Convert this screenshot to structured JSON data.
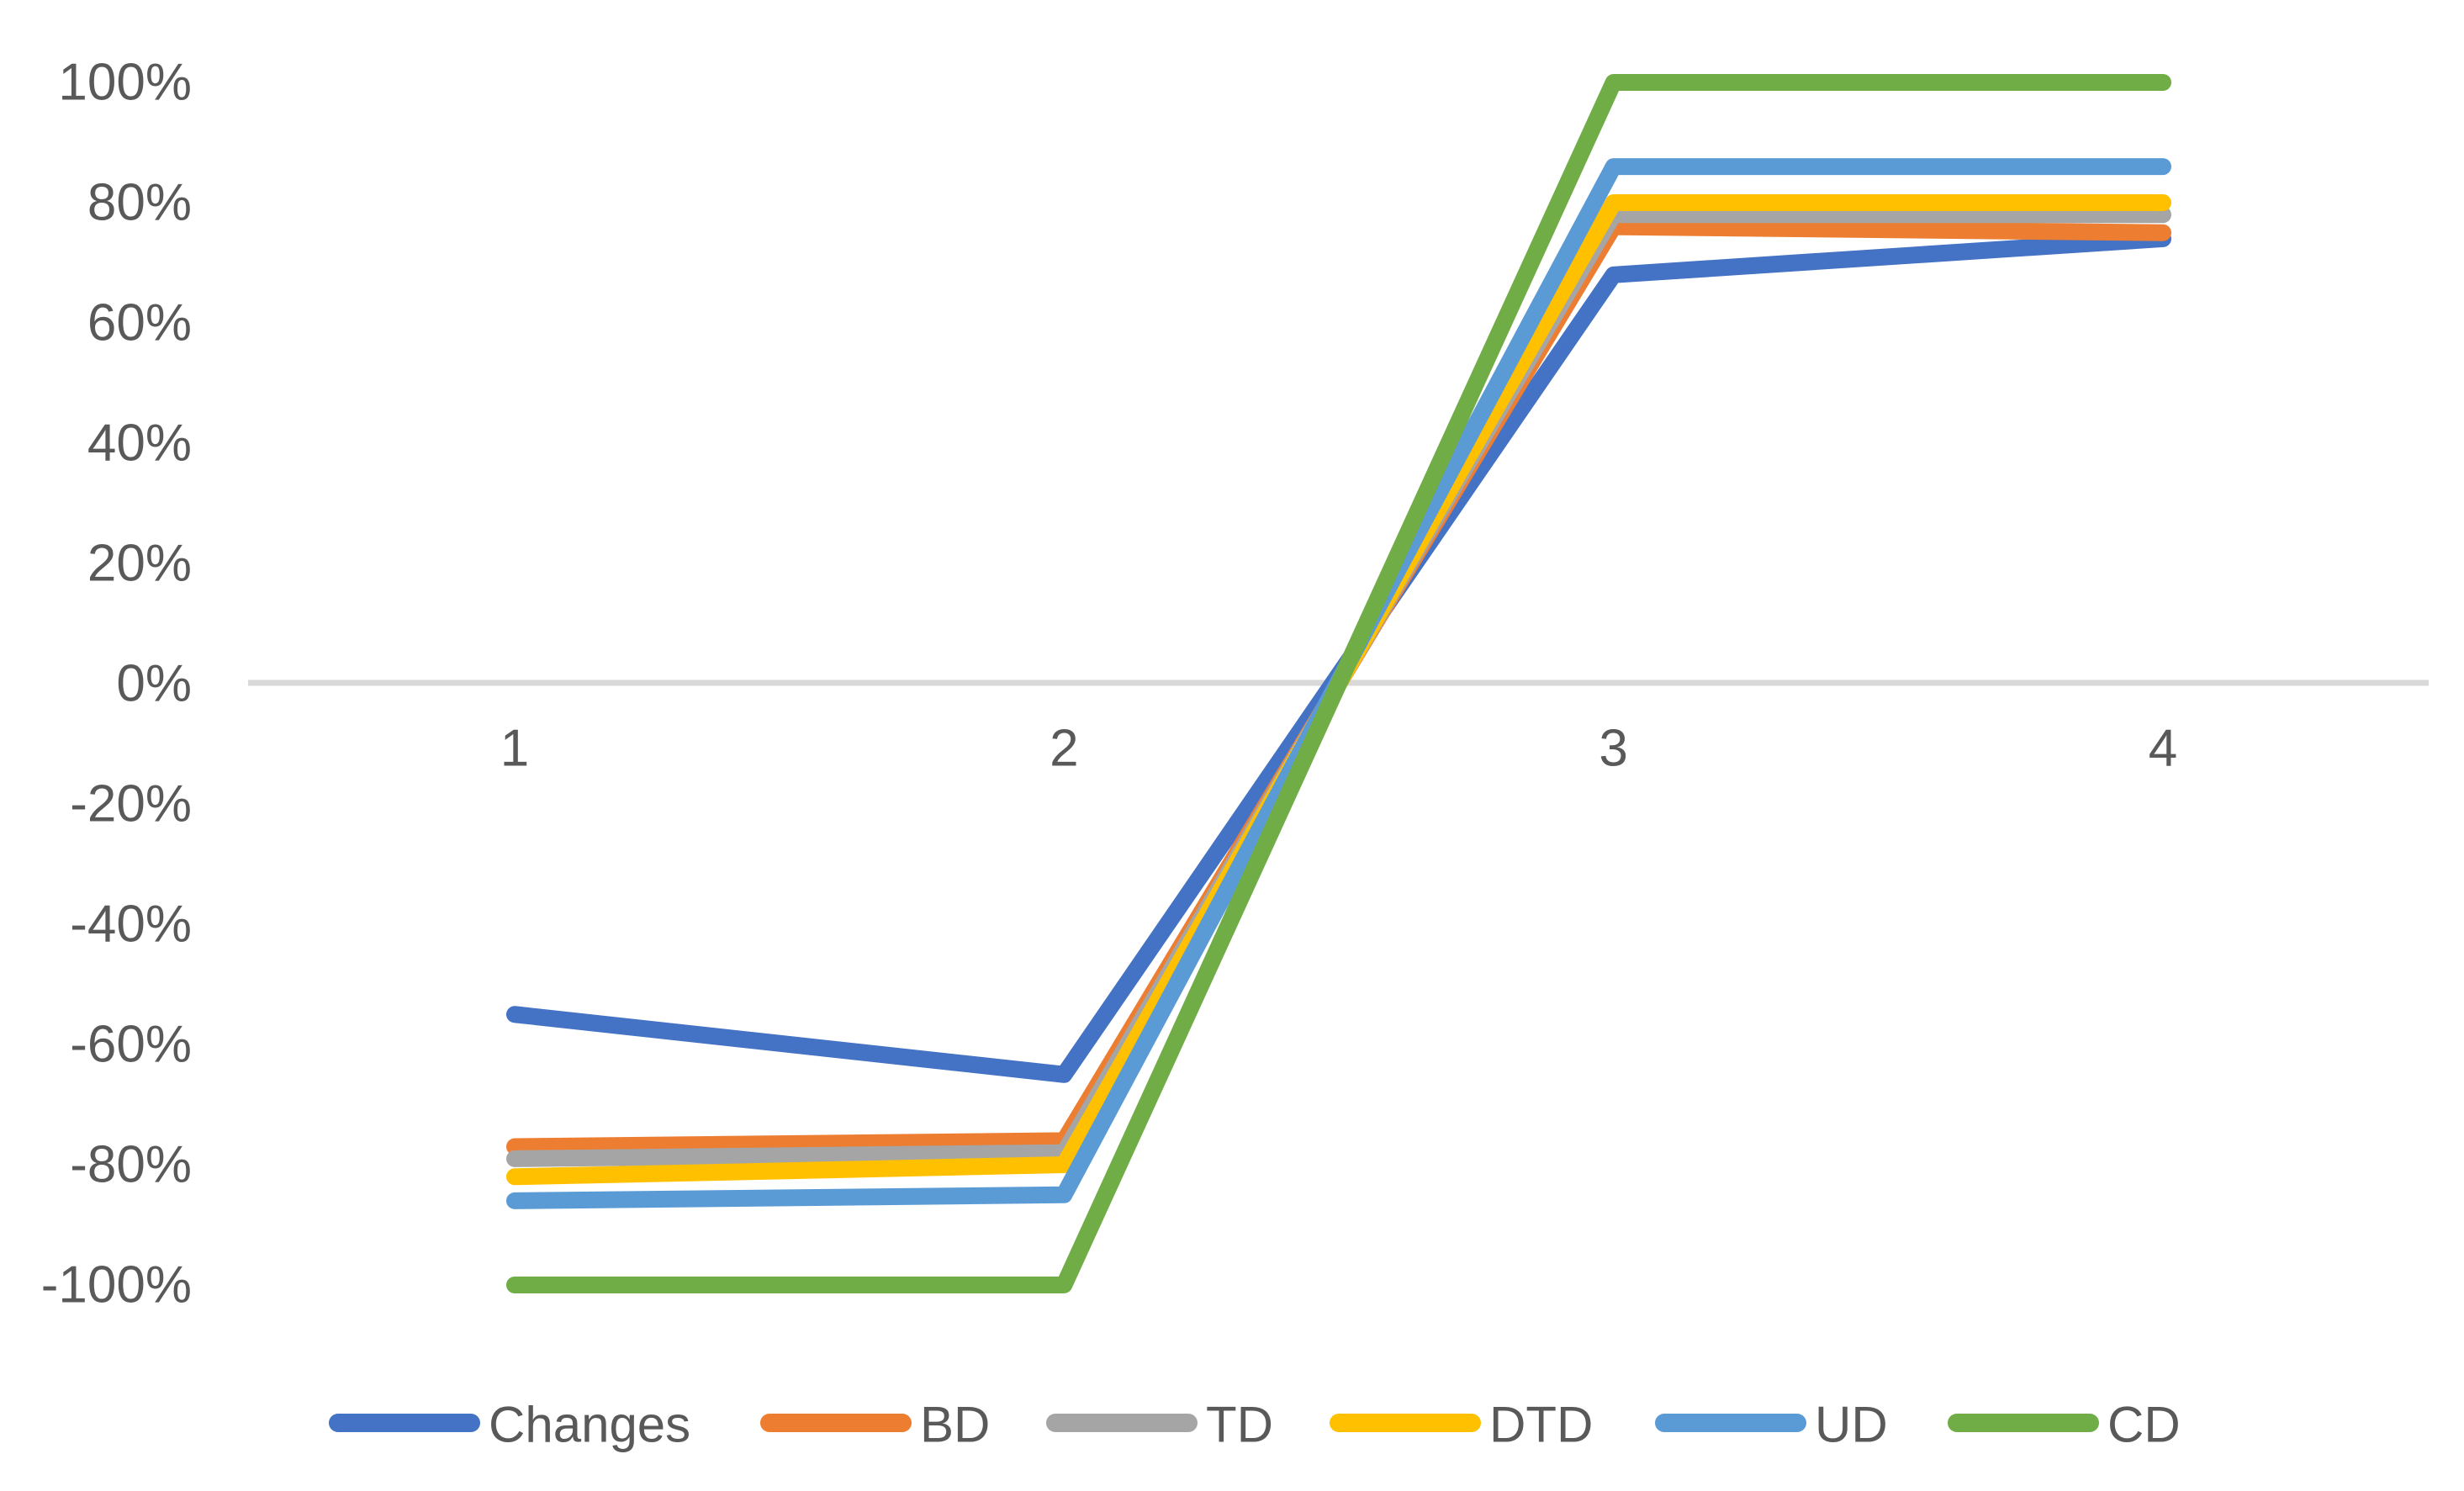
{
  "chart_data": {
    "type": "line",
    "title": "",
    "categories": [
      "1",
      "2",
      "3",
      "4"
    ],
    "series": [
      {
        "name": "Changes",
        "color": "#4472C4",
        "values": [
          -55,
          -65,
          68,
          74
        ]
      },
      {
        "name": "BD",
        "color": "#ED7D31",
        "values": [
          -77,
          -76,
          76,
          75
        ]
      },
      {
        "name": "TD",
        "color": "#A5A5A5",
        "values": [
          -79,
          -78,
          78,
          78
        ]
      },
      {
        "name": "DTD",
        "color": "#FFC000",
        "values": [
          -82,
          -80,
          80,
          80
        ]
      },
      {
        "name": "UD",
        "color": "#5B9BD5",
        "values": [
          -86,
          -85,
          86,
          86
        ]
      },
      {
        "name": "CD",
        "color": "#70AD47",
        "values": [
          -100,
          -100,
          100,
          100
        ]
      }
    ],
    "y_axis": {
      "unit": "%",
      "range": [
        -100,
        100
      ],
      "tick_step": 20,
      "tick_values": [
        100,
        80,
        60,
        40,
        20,
        0,
        -20,
        -40,
        -60,
        -80,
        -100
      ],
      "tick_labels": [
        "100%",
        "80%",
        "60%",
        "40%",
        "20%",
        "0%",
        "-20%",
        "-40%",
        "-60%",
        "-80%",
        "-100%"
      ]
    },
    "x_axis": {
      "labels": [
        "1",
        "2",
        "3",
        "4"
      ]
    },
    "legend": {
      "position": "bottom",
      "entries": [
        "Changes",
        "BD",
        "TD",
        "DTD",
        "UD",
        "CD"
      ]
    },
    "style": {
      "grid": "zero-line-only",
      "axis_text_color": "#595959",
      "zero_line_color": "#D9D9D9",
      "background_color": "#FFFFFF"
    }
  }
}
